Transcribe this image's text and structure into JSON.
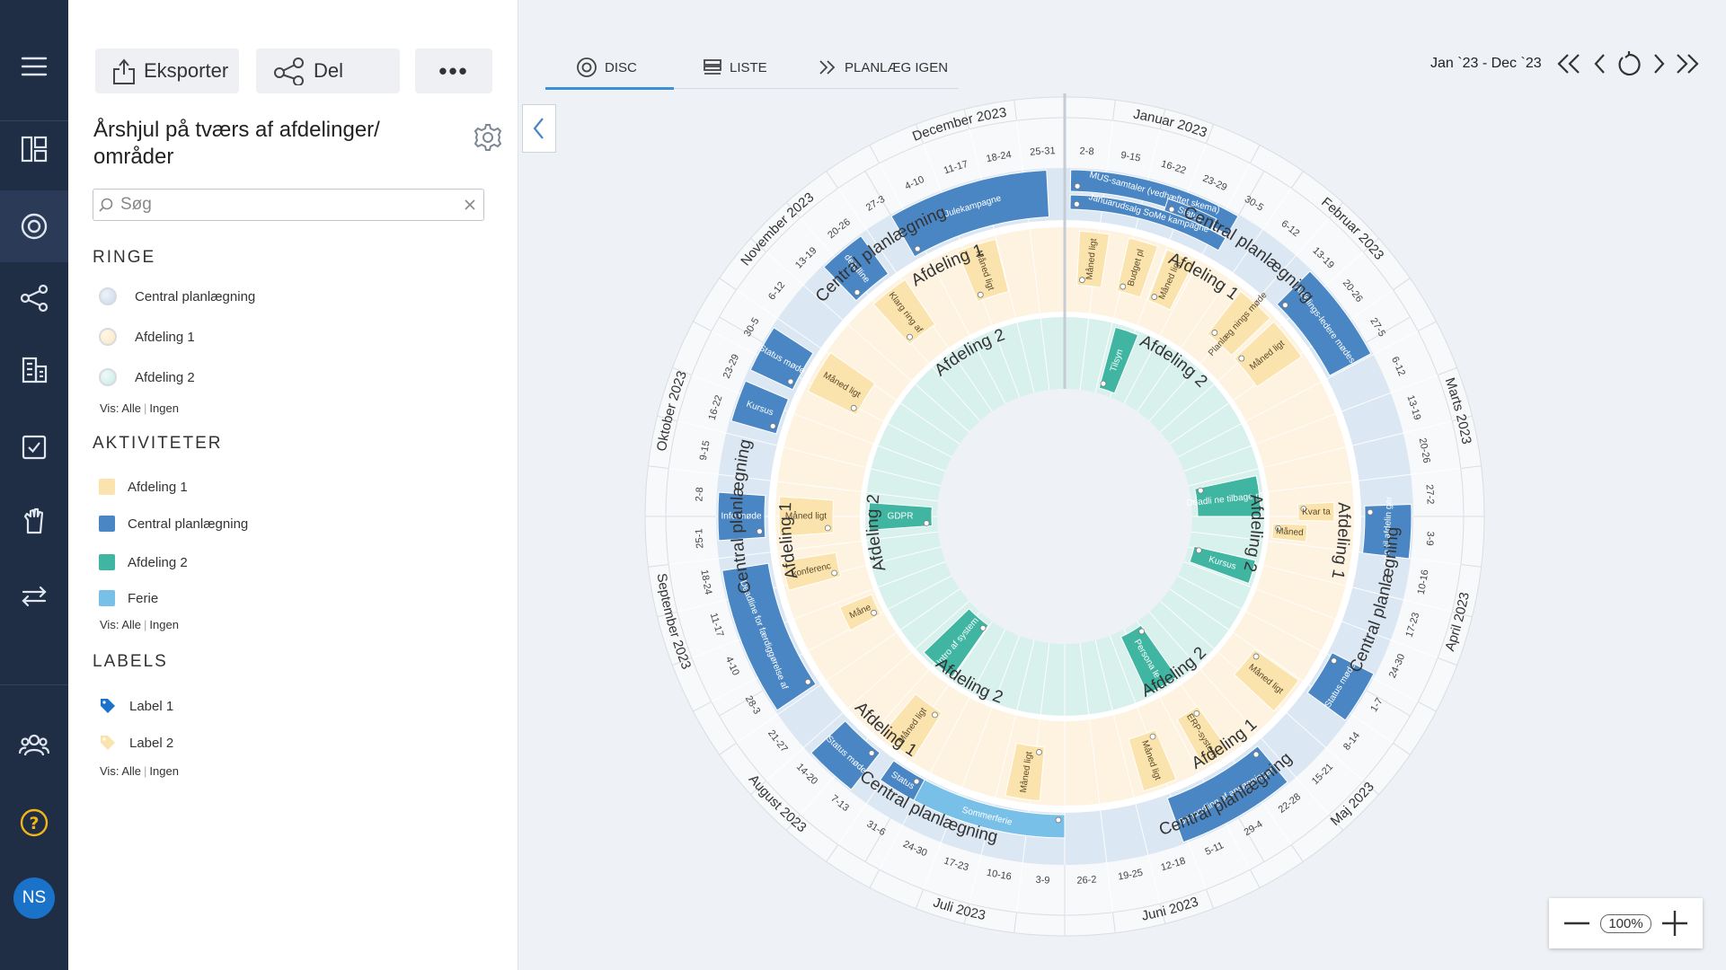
{
  "nav": {
    "items": [
      "menu-icon",
      "dashboard-icon",
      "disc-icon",
      "share-network-icon",
      "buildings-icon",
      "checkbox-icon",
      "hand-icon",
      "transfer-icon",
      "team-icon",
      "help-icon"
    ],
    "avatar_initials": "NS"
  },
  "toolbar": {
    "export_label": "Eksporter",
    "share_label": "Del",
    "more_label": "•••"
  },
  "panel": {
    "title": "Årshjul på tværs af afdelinger/ områder",
    "search_placeholder": "Søg",
    "rings_heading": "RINGE",
    "rings": [
      {
        "label": "Central planlægning",
        "color": "#c9d9ea"
      },
      {
        "label": "Afdeling 1",
        "color": "#fbe6bf"
      },
      {
        "label": "Afdeling 2",
        "color": "#c8ebe4"
      }
    ],
    "activities_heading": "AKTIVITETER",
    "activities": [
      {
        "label": "Afdeling 1",
        "color": "#fbe3ad"
      },
      {
        "label": "Central planlægning",
        "color": "#4a86c3"
      },
      {
        "label": "Afdeling 2",
        "color": "#3fb5a2"
      },
      {
        "label": "Ferie",
        "color": "#78c0e8"
      }
    ],
    "labels_heading": "LABELS",
    "labels": [
      {
        "label": "Label 1",
        "color": "#1a73c9"
      },
      {
        "label": "Label 2",
        "color": "#fbe3ad"
      }
    ],
    "vis_prefix": "Vis:",
    "vis_all": "Alle",
    "vis_none": "Ingen"
  },
  "tabs": [
    {
      "label": "DISC",
      "icon": "disc-icon"
    },
    {
      "label": "LISTE",
      "icon": "list-icon"
    },
    {
      "label": "PLANLÆG IGEN",
      "icon": "double-chevron-right-icon"
    }
  ],
  "date_range": "Jan `23 - Dec `23",
  "zoom_level": "100%",
  "wheel": {
    "months": [
      "Januar 2023",
      "Februar 2023",
      "Marts 2023",
      "April 2023",
      "Maj 2023",
      "Juni 2023",
      "Juli 2023",
      "August 2023",
      "September 2023",
      "Oktober 2023",
      "November 2023",
      "December 2023"
    ],
    "weeks": [
      "2-8",
      "9-15",
      "16-22",
      "23-29",
      "30-5",
      "6-12",
      "13-19",
      "20-26",
      "27-5",
      "6-12",
      "13-19",
      "20-26",
      "27-2",
      "3-9",
      "10-16",
      "17-23",
      "24-30",
      "1-7",
      "8-14",
      "15-21",
      "22-28",
      "29-4",
      "5-11",
      "12-18",
      "19-25",
      "26-2",
      "3-9",
      "10-16",
      "17-23",
      "24-30",
      "31-6",
      "7-13",
      "14-20",
      "21-27",
      "28-3",
      "4-10",
      "11-17",
      "18-24",
      "25-1",
      "2-8",
      "9-15",
      "16-22",
      "23-29",
      "30-5",
      "6-12",
      "13-19",
      "20-26",
      "27-3",
      "4-10",
      "11-17",
      "18-24",
      "25-31"
    ],
    "ring_labels": {
      "central": "Central planlægning",
      "afd1": "Afdeling 1",
      "afd2": "Afdeling 2"
    },
    "activities": [
      {
        "ring": "central",
        "label": "Julekampagne",
        "color": "#4a86c3"
      },
      {
        "ring": "central",
        "label": "MUS-samtaler (vedhæftet skema)",
        "color": "#4a86c3"
      },
      {
        "ring": "central",
        "label": "Status",
        "color": "#4a86c3"
      },
      {
        "ring": "central",
        "label": "Januarudsalg SoMe kampagne",
        "color": "#4a86c3"
      },
      {
        "ring": "central",
        "label": "Afdelings-ledere mødes",
        "color": "#4a86c3"
      },
      {
        "ring": "central",
        "label": "Info til afdelin ger",
        "color": "#4a86c3"
      },
      {
        "ring": "central",
        "label": "Status møde",
        "color": "#4a86c3"
      },
      {
        "ring": "central",
        "label": "Behandling af ansøgninger",
        "color": "#4a86c3"
      },
      {
        "ring": "central",
        "label": "Sommerferie",
        "color": "#78c0e8"
      },
      {
        "ring": "central",
        "label": "Status",
        "color": "#4a86c3"
      },
      {
        "ring": "central",
        "label": "Status møde",
        "color": "#4a86c3"
      },
      {
        "ring": "central",
        "label": "Deadline for færdiggørelse af",
        "color": "#4a86c3"
      },
      {
        "ring": "central",
        "label": "Info møde",
        "color": "#4a86c3"
      },
      {
        "ring": "central",
        "label": "Kursus",
        "color": "#4a86c3"
      },
      {
        "ring": "central",
        "label": "Status møde",
        "color": "#4a86c3"
      },
      {
        "ring": "central",
        "label": "deadline",
        "color": "#4a86c3"
      },
      {
        "ring": "afd1",
        "label": "Måned ligt",
        "color": "#fbe3ad"
      },
      {
        "ring": "afd1",
        "label": "Budget pl",
        "color": "#fbe3ad"
      },
      {
        "ring": "afd1",
        "label": "Måned ligt",
        "color": "#fbe3ad"
      },
      {
        "ring": "afd1",
        "label": "Planlæg nings møde",
        "color": "#fbe3ad"
      },
      {
        "ring": "afd1",
        "label": "Måned ligt",
        "color": "#fbe3ad"
      },
      {
        "ring": "afd1",
        "label": "Kvar ta",
        "color": "#fbe3ad"
      },
      {
        "ring": "afd1",
        "label": "Måned",
        "color": "#fbe3ad"
      },
      {
        "ring": "afd1",
        "label": "Måned ligt",
        "color": "#fbe3ad"
      },
      {
        "ring": "afd1",
        "label": "ERP-system",
        "color": "#fbe3ad"
      },
      {
        "ring": "afd1",
        "label": "Måned ligt",
        "color": "#fbe3ad"
      },
      {
        "ring": "afd1",
        "label": "Måned ligt",
        "color": "#fbe3ad"
      },
      {
        "ring": "afd1",
        "label": "Måned ligt",
        "color": "#fbe3ad"
      },
      {
        "ring": "afd1",
        "label": "Måne",
        "color": "#fbe3ad"
      },
      {
        "ring": "afd1",
        "label": "konferenc",
        "color": "#fbe3ad"
      },
      {
        "ring": "afd1",
        "label": "Måned ligt",
        "color": "#fbe3ad"
      },
      {
        "ring": "afd1",
        "label": "Måned ligt",
        "color": "#fbe3ad"
      },
      {
        "ring": "afd1",
        "label": "Klarg ring af",
        "color": "#fbe3ad"
      },
      {
        "ring": "afd1",
        "label": "Måned ligt",
        "color": "#fbe3ad"
      },
      {
        "ring": "afd2",
        "label": "Tilsyn",
        "color": "#3fb5a2"
      },
      {
        "ring": "afd2",
        "label": "Deadli ne tilbage mel",
        "color": "#3fb5a2"
      },
      {
        "ring": "afd2",
        "label": "Kursus",
        "color": "#3fb5a2"
      },
      {
        "ring": "afd2",
        "label": "Persona le",
        "color": "#3fb5a2"
      },
      {
        "ring": "afd2",
        "label": "Intro af system",
        "color": "#3fb5a2"
      },
      {
        "ring": "afd2",
        "label": "GDPR",
        "color": "#3fb5a2"
      }
    ]
  }
}
